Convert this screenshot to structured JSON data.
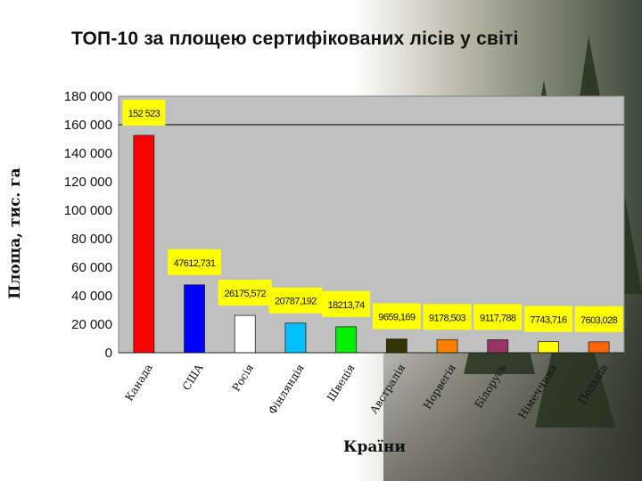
{
  "page": {
    "title": "ТОП-10 за площею сертифікованих лісів у світі"
  },
  "colors": {
    "plot_background": "#c0c0c0",
    "label_background": "#ffff00"
  },
  "chart_data": {
    "type": "bar",
    "title": "ТОП-10 за площею сертифікованих лісів у світі",
    "xlabel": "Країни",
    "ylabel": "Площа, тис. га",
    "ylim": [
      0,
      180000
    ],
    "yticks": [
      0,
      20000,
      40000,
      60000,
      80000,
      100000,
      120000,
      140000,
      160000,
      180000
    ],
    "ytick_labels": [
      "0",
      "20 000",
      "40 000",
      "60 000",
      "80 000",
      "100 000",
      "120 000",
      "140 000",
      "160 000",
      "180 000"
    ],
    "grid": true,
    "categories": [
      "Канада",
      "США",
      "Росія",
      "Фінляндія",
      "Швеція",
      "Австралія",
      "Норвегія",
      "Білорусь",
      "Німеччина",
      "Польща"
    ],
    "values": [
      152523,
      47612.731,
      26175.572,
      20787.192,
      18213.74,
      9659.169,
      9178.503,
      9117.788,
      7743.716,
      7603.028
    ],
    "data_labels": [
      "152 523",
      "47612,731",
      "26175,572",
      "20787,192",
      "18213,74",
      "9659,169",
      "9178,503",
      "9117,788",
      "7743,716",
      "7603,028"
    ],
    "bar_colors": [
      "#ff0000",
      "#0000ff",
      "#ffffff",
      "#00bfff",
      "#00ee00",
      "#333300",
      "#ff8000",
      "#993366",
      "#ffff00",
      "#ff6600"
    ]
  }
}
